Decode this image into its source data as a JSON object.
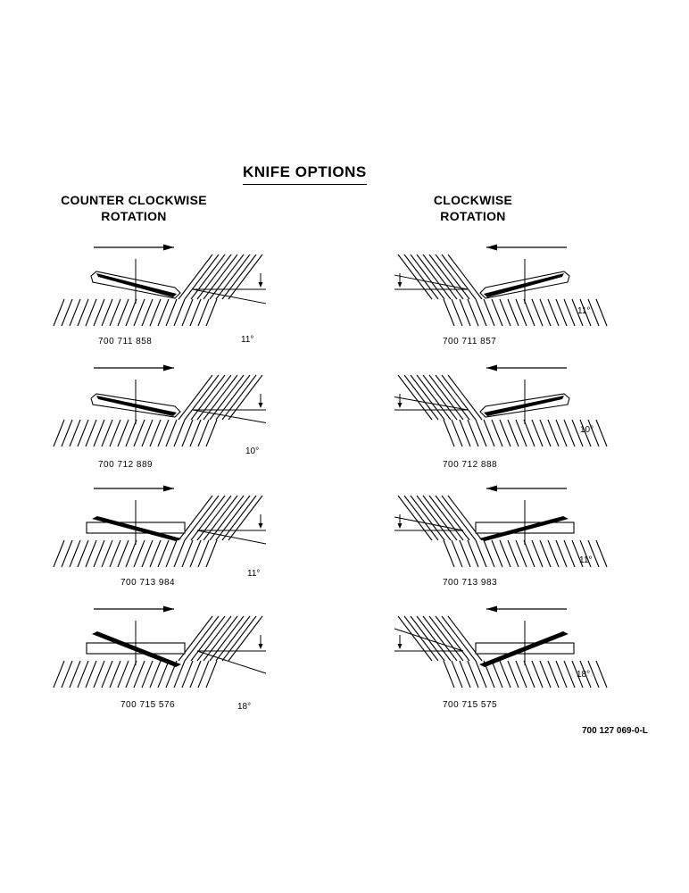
{
  "title": "KNIFE OPTIONS",
  "columns": {
    "left": {
      "line1": "COUNTER CLOCKWISE",
      "line2": "ROTATION",
      "direction": "counter-clockwise"
    },
    "right": {
      "line1": "CLOCKWISE",
      "line2": "ROTATION",
      "direction": "clockwise"
    }
  },
  "panels": {
    "left": [
      {
        "part": "700 711 858",
        "angle": "11°"
      },
      {
        "part": "700 712 889",
        "angle": "10°"
      },
      {
        "part": "700 713 984",
        "angle": "11°"
      },
      {
        "part": "700 715 576",
        "angle": "18°"
      }
    ],
    "right": [
      {
        "part": "700 711 857",
        "angle": "11°"
      },
      {
        "part": "700 712 888",
        "angle": "10°"
      },
      {
        "part": "700 713 983",
        "angle": "11°"
      },
      {
        "part": "700 715 575",
        "angle": "18°"
      }
    ]
  },
  "doc_number": "700 127 069-0-L"
}
